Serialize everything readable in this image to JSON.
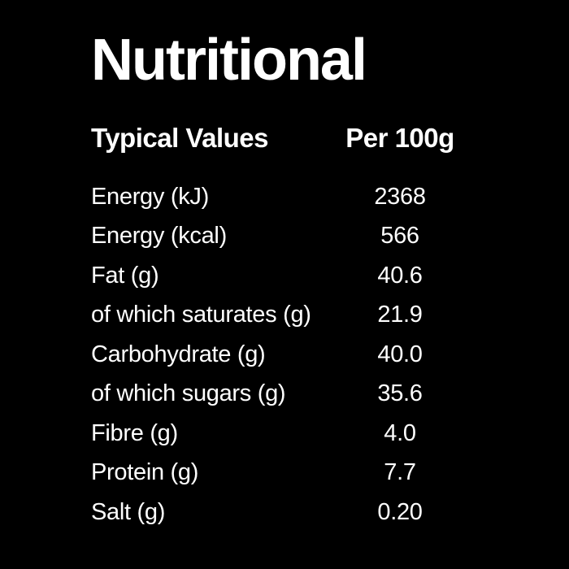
{
  "colors": {
    "background": "#000000",
    "text": "#ffffff"
  },
  "title": "Nutritional",
  "table": {
    "header": {
      "label": "Typical Values",
      "value": "Per 100g"
    },
    "rows": [
      {
        "label": "Energy (kJ)",
        "value": "2368"
      },
      {
        "label": "Energy (kcal)",
        "value": "566"
      },
      {
        "label": "Fat (g)",
        "value": "40.6"
      },
      {
        "label": "of which saturates (g)",
        "value": "21.9"
      },
      {
        "label": "Carbohydrate (g)",
        "value": "40.0"
      },
      {
        "label": "of which sugars (g)",
        "value": "35.6"
      },
      {
        "label": "Fibre (g)",
        "value": "4.0"
      },
      {
        "label": "Protein (g)",
        "value": "7.7"
      },
      {
        "label": "Salt (g)",
        "value": "0.20"
      }
    ]
  },
  "chart_data": {
    "type": "table",
    "title": "Nutritional",
    "columns": [
      "Typical Values",
      "Per 100g"
    ],
    "rows": [
      [
        "Energy (kJ)",
        "2368"
      ],
      [
        "Energy (kcal)",
        "566"
      ],
      [
        "Fat (g)",
        "40.6"
      ],
      [
        "of which saturates (g)",
        "21.9"
      ],
      [
        "Carbohydrate (g)",
        "40.0"
      ],
      [
        "of which sugars (g)",
        "35.6"
      ],
      [
        "Fibre (g)",
        "4.0"
      ],
      [
        "Protein (g)",
        "7.7"
      ],
      [
        "Salt (g)",
        "0.20"
      ]
    ]
  }
}
